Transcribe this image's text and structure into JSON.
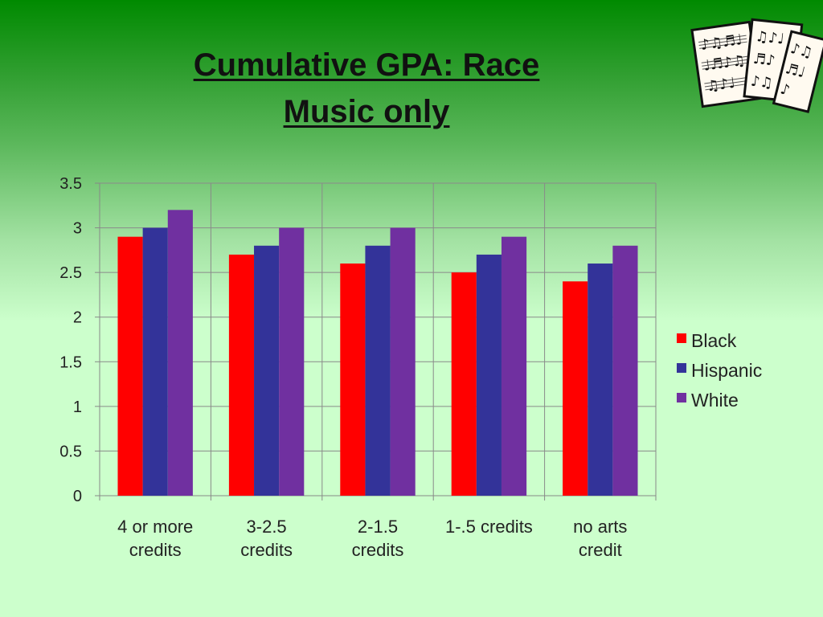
{
  "slide": {
    "title_line1": "Cumulative GPA: Race",
    "title_line2": "Music only",
    "decoration_icon": "sheet-music-icon"
  },
  "chart_data": {
    "type": "bar",
    "title": "",
    "xlabel": "",
    "ylabel": "",
    "categories": [
      [
        "4 or more",
        "credits"
      ],
      [
        "3-2.5",
        "credits"
      ],
      [
        "2-1.5",
        "credits"
      ],
      [
        "1-.5 credits"
      ],
      [
        "no arts",
        "credit"
      ]
    ],
    "series": [
      {
        "name": "Black",
        "color": "#ff0000",
        "values": [
          2.9,
          2.7,
          2.6,
          2.5,
          2.4
        ]
      },
      {
        "name": "Hispanic",
        "color": "#333399",
        "values": [
          3.0,
          2.8,
          2.8,
          2.7,
          2.6
        ]
      },
      {
        "name": "White",
        "color": "#7030a0",
        "values": [
          3.2,
          3.0,
          3.0,
          2.9,
          2.8
        ]
      }
    ],
    "ylim": [
      0,
      3.5
    ],
    "yticks": [
      "0",
      "0.5",
      "1",
      "1.5",
      "2",
      "2.5",
      "3",
      "3.5"
    ],
    "grid": true,
    "legend_position": "right"
  }
}
